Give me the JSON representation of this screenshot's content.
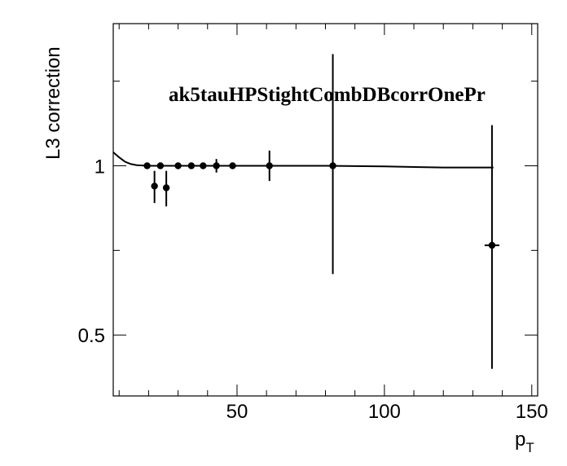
{
  "chart_data": {
    "type": "scatter",
    "title": "ak5tauHPStightCombDBcorrOnePr",
    "xlabel_main": "p",
    "xlabel_sub": "T",
    "ylabel": "L3 correction",
    "xlim": [
      8,
      152
    ],
    "ylim": [
      0.32,
      1.42
    ],
    "xticks": [
      50,
      100,
      150
    ],
    "yticks": [
      0.5,
      1
    ],
    "ytick_labels": [
      "0.5",
      "1"
    ],
    "xtick_labels": [
      "50",
      "100",
      "150"
    ],
    "grid": false,
    "points": [
      {
        "x": 19.5,
        "y": 1.0,
        "ylo": 1.0,
        "yhi": 1.0,
        "xlo": 19.5,
        "xhi": 19.5
      },
      {
        "x": 22.0,
        "y": 0.94,
        "ylo": 0.89,
        "yhi": 0.985,
        "xlo": 22.0,
        "xhi": 22.0
      },
      {
        "x": 24.0,
        "y": 1.0,
        "ylo": 1.0,
        "yhi": 1.0,
        "xlo": 24.0,
        "xhi": 24.0
      },
      {
        "x": 26.0,
        "y": 0.935,
        "ylo": 0.88,
        "yhi": 0.985,
        "xlo": 26.0,
        "xhi": 26.0
      },
      {
        "x": 30.0,
        "y": 1.0,
        "ylo": 1.0,
        "yhi": 1.0,
        "xlo": 30.0,
        "xhi": 30.0
      },
      {
        "x": 34.5,
        "y": 1.0,
        "ylo": 1.0,
        "yhi": 1.0,
        "xlo": 34.5,
        "xhi": 34.5
      },
      {
        "x": 38.5,
        "y": 1.0,
        "ylo": 1.0,
        "yhi": 1.0,
        "xlo": 38.5,
        "xhi": 38.5
      },
      {
        "x": 43.0,
        "y": 1.0,
        "ylo": 0.98,
        "yhi": 1.02,
        "xlo": 41.0,
        "xhi": 45.0
      },
      {
        "x": 48.5,
        "y": 1.0,
        "ylo": 1.0,
        "yhi": 1.0,
        "xlo": 48.5,
        "xhi": 48.5
      },
      {
        "x": 61.0,
        "y": 1.0,
        "ylo": 0.955,
        "yhi": 1.045,
        "xlo": 59.5,
        "xhi": 62.5
      },
      {
        "x": 82.5,
        "y": 1.0,
        "ylo": 0.68,
        "yhi": 1.33,
        "xlo": 81.5,
        "xhi": 83.5
      },
      {
        "x": 136.5,
        "y": 0.765,
        "ylo": 0.4,
        "yhi": 1.12,
        "xlo": 134,
        "xhi": 139
      }
    ],
    "fit_curve": {
      "x": [
        8,
        10,
        12,
        14,
        16,
        18,
        20,
        25,
        30,
        40,
        60,
        80,
        100,
        120,
        137
      ],
      "y": [
        1.04,
        1.025,
        1.012,
        1.005,
        1.002,
        1.001,
        1.0,
        1.0,
        1.0,
        1.0,
        1.0,
        1.0,
        0.998,
        0.995,
        0.995
      ]
    }
  }
}
